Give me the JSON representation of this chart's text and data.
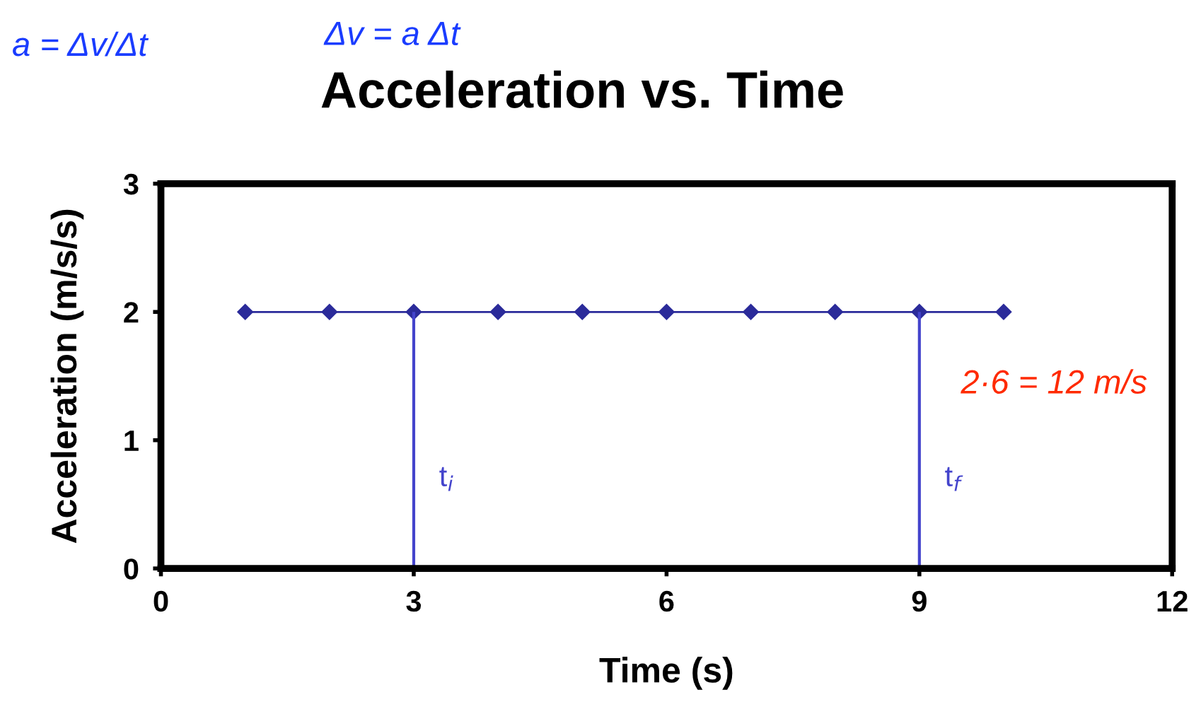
{
  "chart_data": {
    "type": "line",
    "title": "Acceleration vs. Time",
    "xlabel": "Time (s)",
    "ylabel": "Acceleration (m/s/s)",
    "x": [
      1,
      2,
      3,
      4,
      5,
      6,
      7,
      8,
      9,
      10
    ],
    "series": [
      {
        "color": "#2b2b9a",
        "values": [
          2,
          2,
          2,
          2,
          2,
          2,
          2,
          2,
          2,
          2
        ]
      }
    ],
    "marker": "diamond",
    "line_style": "solid",
    "xlim": [
      0,
      12
    ],
    "xticks": [
      0,
      3,
      6,
      9,
      12
    ],
    "ylim": [
      0,
      3
    ],
    "yticks": [
      0,
      1,
      2,
      3
    ],
    "grid": false,
    "legend": false,
    "ref_lines": [
      {
        "axis": "x",
        "value": 3,
        "label": "t$_{i}$",
        "color": "#4444cc"
      },
      {
        "axis": "x",
        "value": 9,
        "label": "t$_{f}$",
        "color": "#4444cc"
      }
    ],
    "annotations": [
      "a = Δv/Δt",
      "Δv = a Δt",
      "2·6 = 12 m/s"
    ]
  }
}
